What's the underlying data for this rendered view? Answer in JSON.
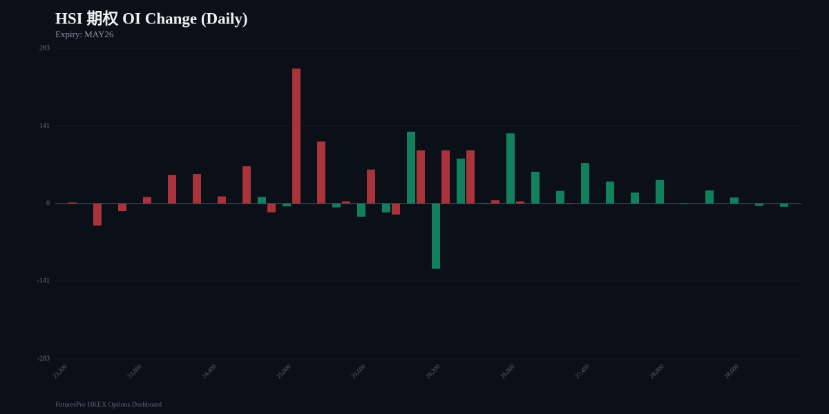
{
  "chart_data": {
    "type": "bar",
    "title": "HSI 期权 OI Change (Daily)",
    "subtitle": "Expiry: MAY26",
    "footer": "FuturesPro HKEX Options Dashboard",
    "categories": [
      "23,200",
      null,
      null,
      "23,800",
      null,
      null,
      "24,400",
      null,
      null,
      "25,000",
      null,
      null,
      "25,600",
      null,
      null,
      "26,200",
      null,
      null,
      "26,800",
      null,
      null,
      "27,400",
      null,
      null,
      "28,000",
      null,
      null,
      "28,600",
      null,
      null
    ],
    "series": [
      {
        "color": "#12805f",
        "values": [
          0,
          0,
          0,
          0,
          0,
          0,
          0,
          0,
          12,
          -5,
          0,
          -7,
          -24,
          -16,
          131,
          -119,
          82,
          -1,
          128,
          58,
          23,
          74,
          40,
          20,
          43,
          1,
          24,
          11,
          -4,
          -6
        ]
      },
      {
        "color": "#a8333a",
        "values": [
          2,
          -40,
          -14,
          12,
          52,
          54,
          13,
          68,
          -16,
          246,
          113,
          4,
          62,
          -20,
          97,
          97,
          97,
          6,
          4,
          0,
          1,
          0,
          0,
          0,
          0,
          0,
          0,
          0,
          0,
          0
        ]
      }
    ],
    "ylim": [
      -283,
      283
    ],
    "yticks": [
      -283,
      -141,
      0,
      141,
      283
    ],
    "grid": true
  }
}
